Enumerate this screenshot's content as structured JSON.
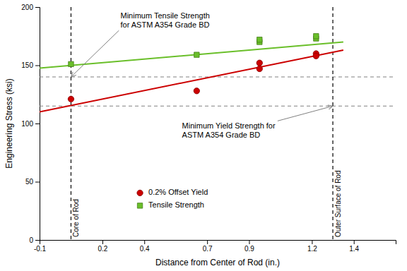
{
  "chart_data": {
    "type": "scatter",
    "xlabel": "Distance from Center of Rod (in.)",
    "ylabel": "Engineering Stress (ksi)",
    "xlim": [
      -0.1,
      1.6
    ],
    "ylim": [
      0,
      200
    ],
    "xticks": [
      -0.1,
      0.2,
      0.4,
      0.7,
      0.9,
      1.2,
      1.4
    ],
    "yticks": [
      0,
      50,
      100,
      150,
      200
    ],
    "hlines": [
      140,
      115
    ],
    "vlines": [
      {
        "value": 0.05,
        "label": "Core of Rod"
      },
      {
        "value": 1.3,
        "label": "Outer Surface of Rod"
      }
    ],
    "series": [
      {
        "name": "0.2% Offset Yield",
        "color": "#cc0000",
        "marker": "circle",
        "x": [
          0.05,
          0.65,
          0.95,
          0.95,
          1.22,
          1.22
        ],
        "values": [
          121,
          128,
          152,
          147,
          160,
          158
        ],
        "fit": {
          "x": [
            -0.1,
            1.35
          ],
          "values": [
            110.0,
            163.0
          ]
        }
      },
      {
        "name": "Tensile Strength",
        "color": "#6abf2a",
        "marker": "square",
        "x": [
          0.05,
          0.65,
          0.95,
          0.95,
          1.22,
          1.22
        ],
        "values": [
          151,
          159,
          170,
          172,
          173,
          175
        ],
        "fit": {
          "x": [
            -0.1,
            1.35
          ],
          "values": [
            147.5,
            170.0
          ]
        }
      }
    ],
    "annotations": [
      {
        "text": "Minimum Tensile Strength\nfor ASTM A354 Grade BD",
        "x": 0.05,
        "y": 140
      },
      {
        "text": "Minimum Yield Strength for\nASTM A354 Grade BD",
        "x": 1.3,
        "y": 115
      }
    ],
    "legend": "lower left"
  }
}
